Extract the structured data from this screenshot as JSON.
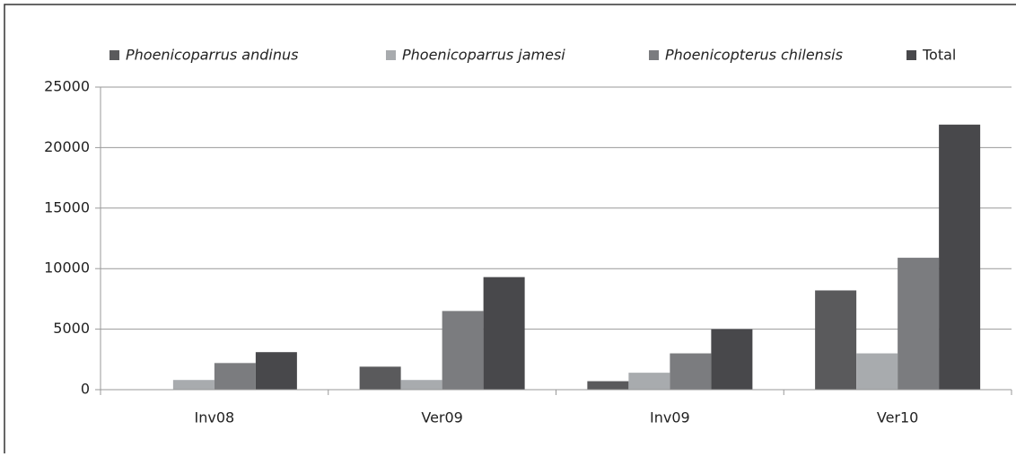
{
  "chart_data": {
    "type": "bar",
    "categories": [
      "Inv08",
      "Ver09",
      "Inv09",
      "Ver10"
    ],
    "series": [
      {
        "name": "Phoenicoparrus andinus",
        "color": "#5a5a5c",
        "italic": true,
        "values": [
          0,
          1900,
          700,
          8200
        ]
      },
      {
        "name": "Phoenicoparrus jamesi",
        "color": "#a8abae",
        "italic": true,
        "values": [
          800,
          800,
          1400,
          3000
        ]
      },
      {
        "name": "Phoenicopterus chilensis",
        "color": "#7b7c7f",
        "italic": true,
        "values": [
          2200,
          6500,
          3000,
          10900
        ]
      },
      {
        "name": "Total",
        "color": "#48484b",
        "italic": false,
        "values": [
          3100,
          9300,
          5000,
          21900
        ]
      }
    ],
    "ylim": [
      0,
      25000
    ],
    "yticks": [
      0,
      5000,
      10000,
      15000,
      20000,
      25000
    ],
    "grid": true,
    "legend": "top"
  }
}
